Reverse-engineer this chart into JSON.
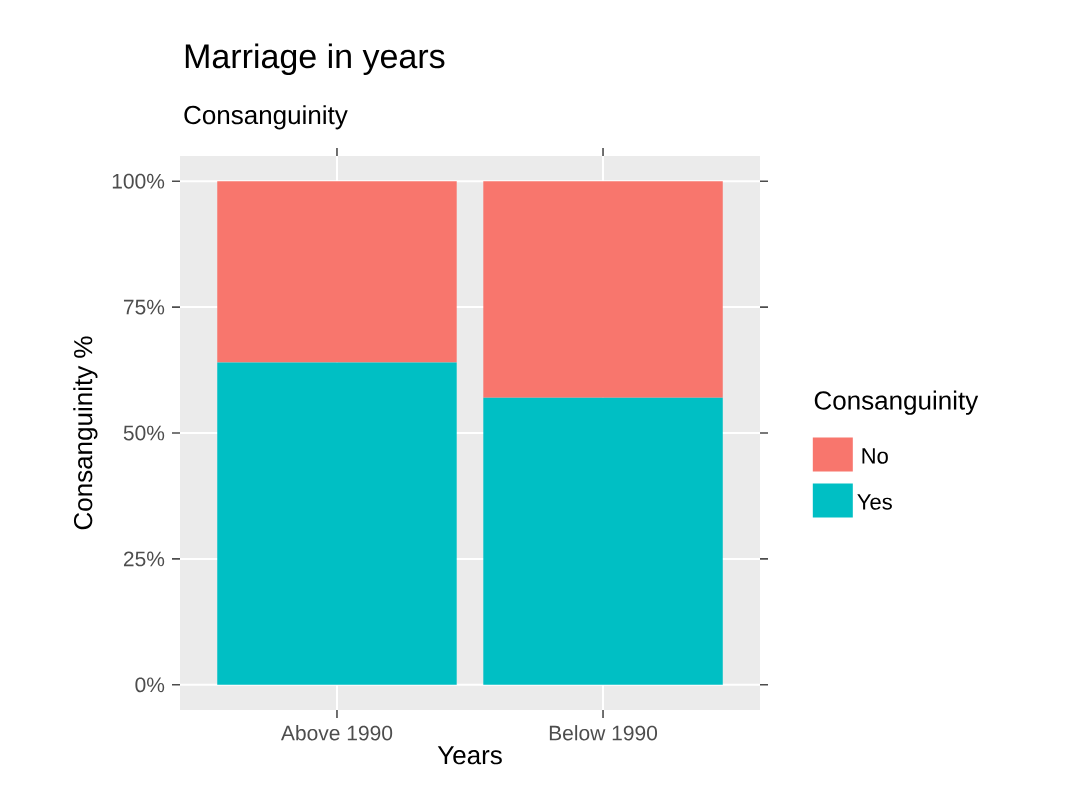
{
  "chart_data": {
    "type": "bar",
    "title": "Marriage in years",
    "subtitle": "Consanguinity",
    "xlabel": "Years",
    "ylabel": "Consanguinity %",
    "legend_title": "Consanguinity",
    "categories": [
      "Above 1990",
      "Below 1990"
    ],
    "series": [
      {
        "name": "Yes",
        "color": "#00bfc4",
        "values": [
          64,
          57
        ]
      },
      {
        "name": "No",
        "color": "#f8766d",
        "values": [
          36,
          43
        ]
      }
    ],
    "stacked": true,
    "ylim": [
      -5,
      105
    ],
    "yticks": [
      {
        "value": 0,
        "label": "0%"
      },
      {
        "value": 25,
        "label": "25%"
      },
      {
        "value": 50,
        "label": "50%"
      },
      {
        "value": 75,
        "label": "75%"
      },
      {
        "value": 100,
        "label": "100%"
      }
    ],
    "grid": true,
    "legend": "right"
  }
}
